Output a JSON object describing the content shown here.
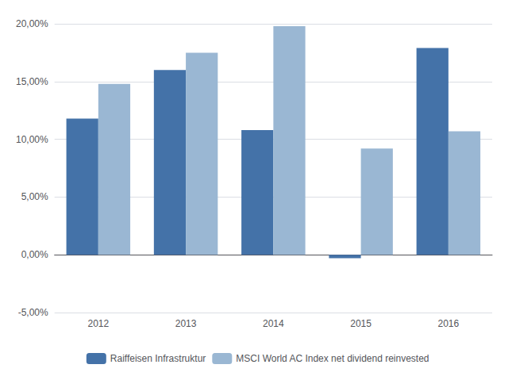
{
  "chart_data": {
    "type": "bar",
    "categories": [
      "2012",
      "2013",
      "2014",
      "2015",
      "2016"
    ],
    "series": [
      {
        "name": "Raiffeisen Infrastruktur",
        "color": "#4472a8",
        "values": [
          0.118,
          0.16,
          0.108,
          -0.003,
          0.179
        ]
      },
      {
        "name": "MSCI World AC Index net dividend reinvested",
        "color": "#9ab7d3",
        "values": [
          0.148,
          0.175,
          0.198,
          0.092,
          0.107
        ]
      }
    ],
    "ylim": [
      -0.05,
      0.2
    ],
    "yticks": [
      {
        "value": -0.05,
        "label": "-5,00%"
      },
      {
        "value": 0,
        "label": "0,00%"
      },
      {
        "value": 0.05,
        "label": "5,00%"
      },
      {
        "value": 0.1,
        "label": "10,00%"
      },
      {
        "value": 0.15,
        "label": "15,00%"
      },
      {
        "value": 0.2,
        "label": "20,00%"
      }
    ],
    "grid": true,
    "legend": "bottom"
  }
}
